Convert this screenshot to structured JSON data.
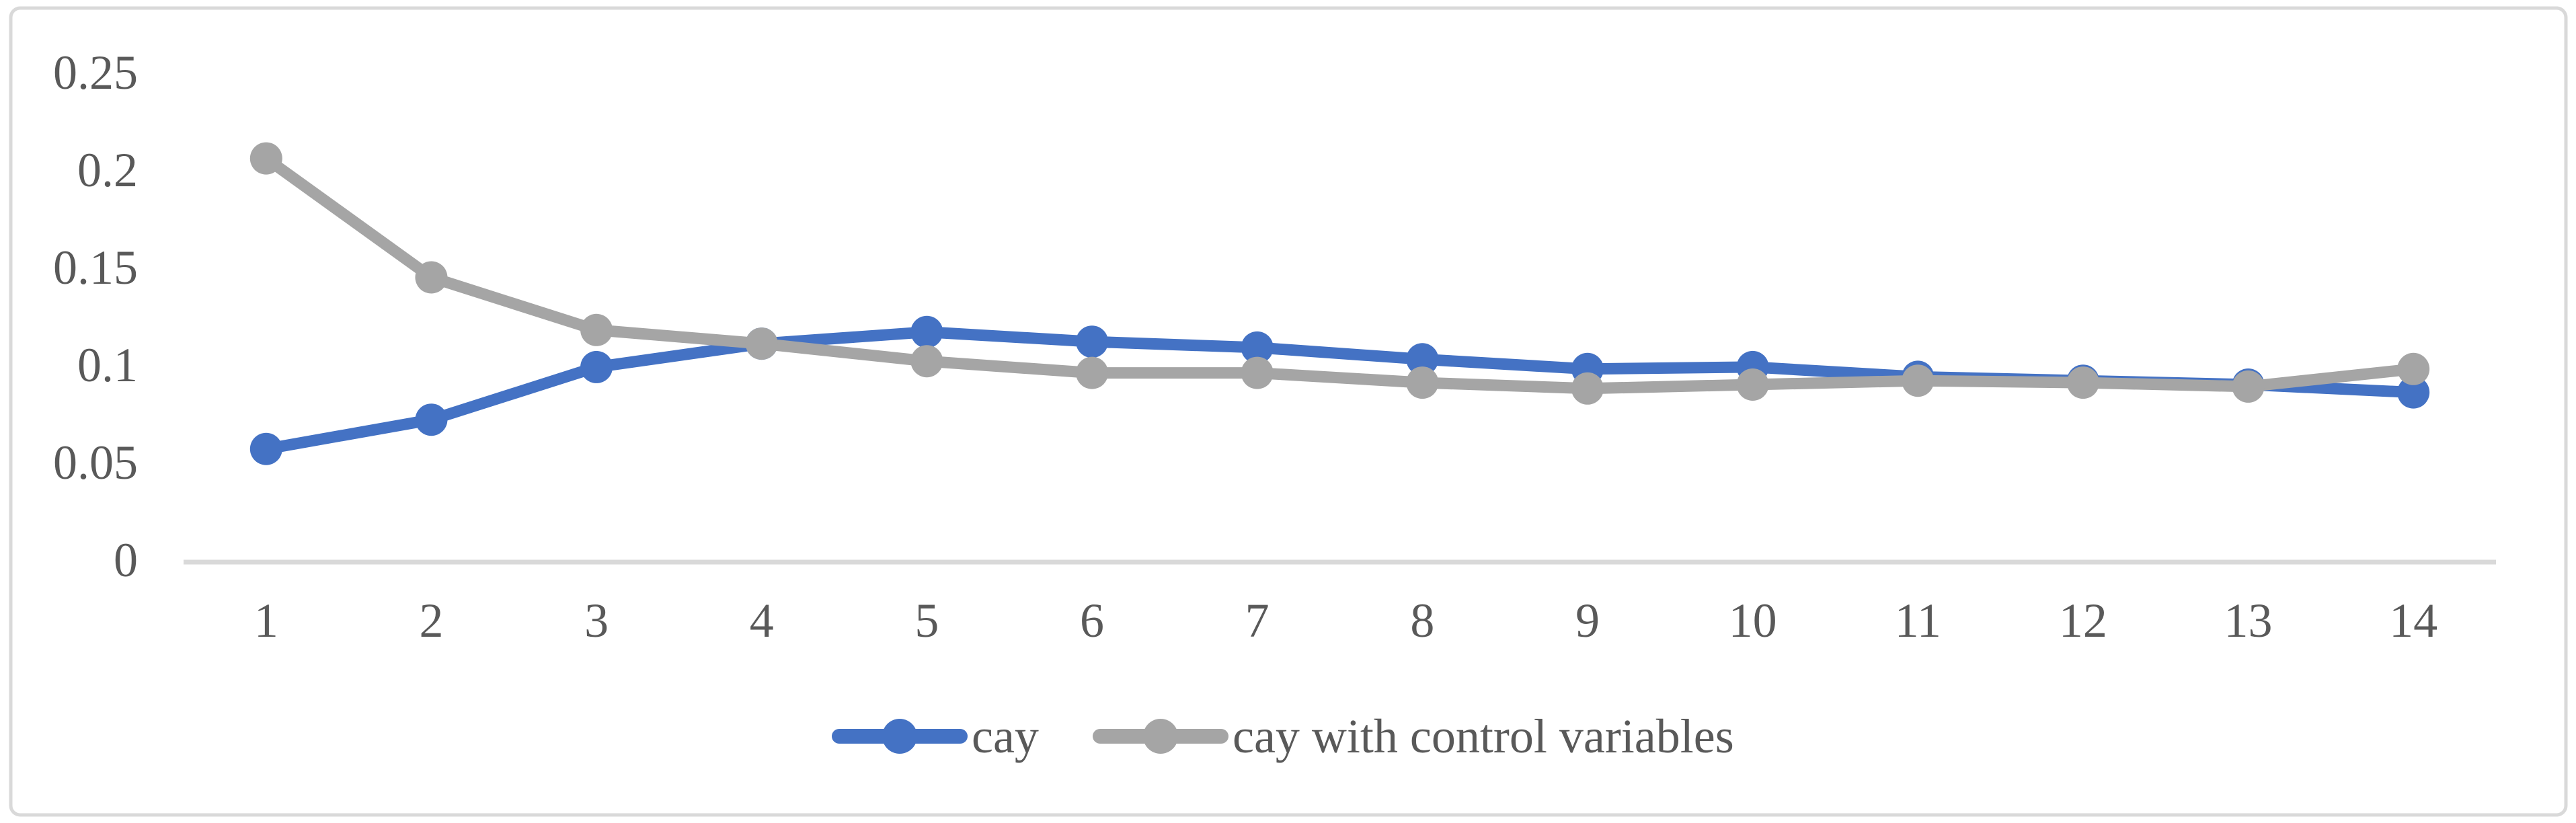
{
  "chart_data": {
    "type": "line",
    "title": "",
    "xlabel": "",
    "ylabel": "",
    "categories": [
      "1",
      "2",
      "3",
      "4",
      "5",
      "6",
      "7",
      "8",
      "9",
      "10",
      "11",
      "12",
      "13",
      "14"
    ],
    "series": [
      {
        "name": "cay",
        "color": "#4472C4",
        "values": [
          0.057,
          0.072,
          0.099,
          0.111,
          0.117,
          0.112,
          0.109,
          0.103,
          0.098,
          0.099,
          0.094,
          0.092,
          0.09,
          0.086
        ]
      },
      {
        "name": "cay with control variables",
        "color": "#A5A5A5",
        "values": [
          0.206,
          0.145,
          0.118,
          0.111,
          0.102,
          0.096,
          0.096,
          0.091,
          0.088,
          0.09,
          0.092,
          0.091,
          0.089,
          0.098
        ]
      }
    ],
    "ylim": [
      0,
      0.25
    ],
    "yticks": [
      0,
      0.05,
      0.1,
      0.15,
      0.2,
      0.25
    ],
    "ytick_labels": [
      "0",
      "0.05",
      "0.1",
      "0.15",
      "0.2",
      "0.25"
    ],
    "grid": false,
    "legend_position": "bottom",
    "marker": "circle",
    "colors": {
      "axis_line": "#D9D9D9",
      "chart_border": "#D9D9D9",
      "tick_text": "#595959",
      "background": "#FFFFFF"
    }
  }
}
